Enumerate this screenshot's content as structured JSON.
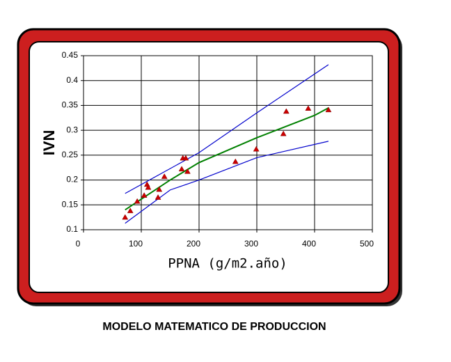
{
  "chart_data": {
    "type": "scatter",
    "title": "MODELO MATEMATICO DE PRODUCCION",
    "x_label": "PPNA (g/m2.año)",
    "y_label": "IVN",
    "xlim": [
      0,
      500
    ],
    "xticks": [
      0,
      100,
      200,
      300,
      400,
      500
    ],
    "ylim": [
      0.1,
      0.45
    ],
    "yticks": [
      0.1,
      0.15,
      0.2,
      0.25,
      0.3,
      0.35,
      0.4,
      0.45
    ],
    "grid": true,
    "series": [
      {
        "mode": "markers",
        "color": "#cc0000",
        "x": [
          72,
          81,
          93,
          105,
          110,
          112,
          129,
          131,
          140,
          170,
          172,
          177,
          180,
          263,
          299,
          346,
          351,
          389,
          424
        ],
        "values": [
          0.125,
          0.138,
          0.157,
          0.169,
          0.191,
          0.185,
          0.165,
          0.181,
          0.207,
          0.222,
          0.244,
          0.244,
          0.217,
          0.237,
          0.262,
          0.293,
          0.338,
          0.344,
          0.341
        ]
      },
      {
        "mode": "line",
        "color": "#008000",
        "x": [
          72,
          150,
          200,
          300,
          400,
          424
        ],
        "values": [
          0.14,
          0.2,
          0.235,
          0.285,
          0.33,
          0.345
        ]
      },
      {
        "mode": "line",
        "color": "#0000cc",
        "x": [
          72,
          200,
          300,
          424
        ],
        "values": [
          0.173,
          0.255,
          0.335,
          0.432
        ]
      },
      {
        "mode": "line",
        "color": "#0000cc",
        "x": [
          72,
          150,
          200,
          300,
          424
        ],
        "values": [
          0.113,
          0.18,
          0.2,
          0.245,
          0.278
        ]
      }
    ]
  }
}
